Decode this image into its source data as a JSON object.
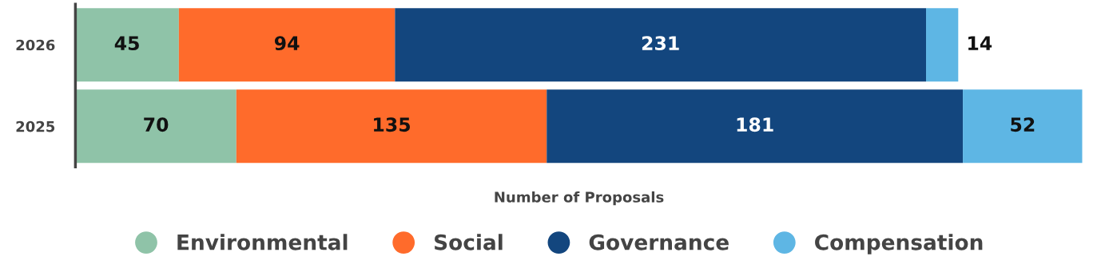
{
  "chart_data": {
    "type": "bar",
    "orientation": "horizontal",
    "stacked": true,
    "xlabel": "Number of Proposals",
    "categories": [
      "2026",
      "2025"
    ],
    "series": [
      {
        "name": "Environmental",
        "color": "#8fc3a8",
        "values": [
          45,
          70
        ]
      },
      {
        "name": "Social",
        "color": "#ff6b2b",
        "values": [
          94,
          135
        ]
      },
      {
        "name": "Governance",
        "color": "#13467e",
        "values": [
          231,
          181
        ]
      },
      {
        "name": "Compensation",
        "color": "#5eb6e4",
        "values": [
          14,
          52
        ]
      }
    ],
    "data_labels": true,
    "legend": "bottom",
    "grid": false,
    "tick_labels": "y"
  }
}
